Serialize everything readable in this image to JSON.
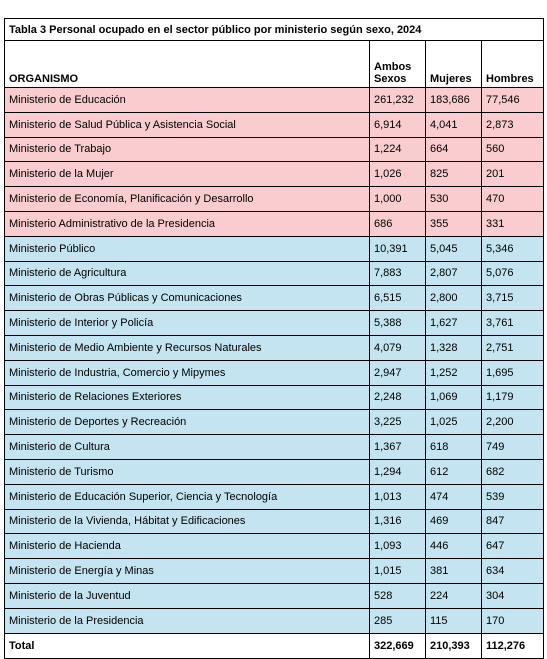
{
  "table": {
    "title": "Tabla 3  Personal ocupado en el sector público por ministerio según sexo, 2024",
    "headers": {
      "organismo": "ORGANISMO",
      "ambos_line1": "Ambos",
      "ambos_line2": "Sexos",
      "mujeres": "Mujeres",
      "hombres": "Hombres"
    },
    "colors": {
      "pink": "#f9cccf",
      "blue": "#c3e4f0"
    },
    "rows": [
      {
        "organismo": "Ministerio de Educación",
        "ambos": "261,232",
        "mujeres": "183,686",
        "hombres": "77,546",
        "group": "pink"
      },
      {
        "organismo": "Ministerio de Salud Pública y Asistencia Social",
        "ambos": "6,914",
        "mujeres": "4,041",
        "hombres": "2,873",
        "group": "pink"
      },
      {
        "organismo": "Ministerio de Trabajo",
        "ambos": "1,224",
        "mujeres": "664",
        "hombres": "560",
        "group": "pink"
      },
      {
        "organismo": "Ministerio de la Mujer",
        "ambos": "1,026",
        "mujeres": "825",
        "hombres": "201",
        "group": "pink"
      },
      {
        "organismo": "Ministerio de Economía, Planificación y Desarrollo",
        "ambos": "1,000",
        "mujeres": "530",
        "hombres": "470",
        "group": "pink"
      },
      {
        "organismo": "Ministerio Administrativo de la Presidencia",
        "ambos": "686",
        "mujeres": "355",
        "hombres": "331",
        "group": "pink"
      },
      {
        "organismo": "Ministerio Público",
        "ambos": "10,391",
        "mujeres": "5,045",
        "hombres": "5,346",
        "group": "blue"
      },
      {
        "organismo": "Ministerio de Agricultura",
        "ambos": "7,883",
        "mujeres": "2,807",
        "hombres": "5,076",
        "group": "blue"
      },
      {
        "organismo": "Ministerio de Obras Públicas y Comunicaciones",
        "ambos": "6,515",
        "mujeres": "2,800",
        "hombres": "3,715",
        "group": "blue"
      },
      {
        "organismo": "Ministerio de Interior y Policía",
        "ambos": "5,388",
        "mujeres": "1,627",
        "hombres": "3,761",
        "group": "blue"
      },
      {
        "organismo": "Ministerio de Medio Ambiente y Recursos Naturales",
        "ambos": "4,079",
        "mujeres": "1,328",
        "hombres": "2,751",
        "group": "blue"
      },
      {
        "organismo": "Ministerio de Industria, Comercio y Mipymes",
        "ambos": "2,947",
        "mujeres": "1,252",
        "hombres": "1,695",
        "group": "blue"
      },
      {
        "organismo": "Ministerio de Relaciones Exteriores",
        "ambos": "2,248",
        "mujeres": "1,069",
        "hombres": "1,179",
        "group": "blue"
      },
      {
        "organismo": "Ministerio de Deportes y Recreación",
        "ambos": "3,225",
        "mujeres": "1,025",
        "hombres": "2,200",
        "group": "blue"
      },
      {
        "organismo": "Ministerio de Cultura",
        "ambos": "1,367",
        "mujeres": "618",
        "hombres": "749",
        "group": "blue"
      },
      {
        "organismo": "Ministerio de Turismo",
        "ambos": "1,294",
        "mujeres": "612",
        "hombres": "682",
        "group": "blue"
      },
      {
        "organismo": "Ministerio de Educación Superior, Ciencia y Tecnología",
        "ambos": "1,013",
        "mujeres": "474",
        "hombres": "539",
        "group": "blue"
      },
      {
        "organismo": "Ministerio de la Vivienda, Hábitat y Edificaciones",
        "ambos": "1,316",
        "mujeres": "469",
        "hombres": "847",
        "group": "blue"
      },
      {
        "organismo": "Ministerio de Hacienda",
        "ambos": "1,093",
        "mujeres": "446",
        "hombres": "647",
        "group": "blue"
      },
      {
        "organismo": "Ministerio de Energía y Minas",
        "ambos": "1,015",
        "mujeres": "381",
        "hombres": "634",
        "group": "blue"
      },
      {
        "organismo": "Ministerio de la Juventud",
        "ambos": "528",
        "mujeres": "224",
        "hombres": "304",
        "group": "blue"
      },
      {
        "organismo": "Ministerio de la Presidencia",
        "ambos": "285",
        "mujeres": "115",
        "hombres": "170",
        "group": "blue"
      }
    ],
    "total": {
      "label": "Total",
      "ambos": "322,669",
      "mujeres": "210,393",
      "hombres": "112,276"
    }
  }
}
